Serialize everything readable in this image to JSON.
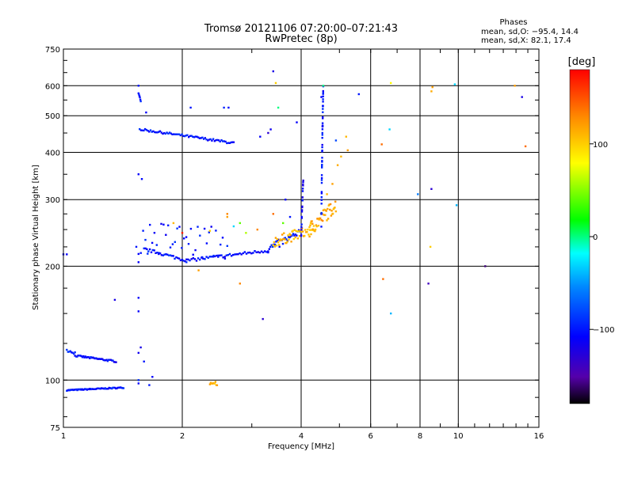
{
  "chart_data": {
    "type": "scatter",
    "title": "Tromsø 20121106 07:20:00–07:21:43",
    "subtitle": "RwPretec (8p)",
    "xlabel": "Frequency [MHz]",
    "ylabel": "Stationary phase Virtual Height [km]",
    "x_scale": "log",
    "y_scale": "log",
    "xlim": [
      1,
      16
    ],
    "ylim": [
      75,
      750
    ],
    "x_ticks": [
      1,
      2,
      4,
      6,
      8,
      10,
      16
    ],
    "y_ticks": [
      75,
      100,
      200,
      300,
      400,
      500,
      600,
      750
    ],
    "grid": true,
    "phase_box": {
      "title": "Phases",
      "line1": "mean, sd,O: −95.4, 14.4",
      "line2": "mean, sd,X:  82.1, 17.4"
    },
    "colorbar": {
      "label": "[deg]",
      "range": [
        -180,
        180
      ],
      "ticks": [
        100,
        0,
        -100
      ],
      "tick_labels": [
        "100",
        "0",
        "−100"
      ]
    },
    "segments": [
      {
        "x_from": 1.02,
        "x_to": 1.42,
        "y_from": 94,
        "y_to": 95.5,
        "n": 60,
        "phase": -100,
        "jitter": 0.3
      },
      {
        "x_from": 1.02,
        "x_to": 1.07,
        "y_from": 120,
        "y_to": 118,
        "n": 8,
        "phase": -100,
        "jitter": 1.0
      },
      {
        "x_from": 1.07,
        "x_to": 1.36,
        "y_from": 116,
        "y_to": 112,
        "n": 40,
        "phase": -105,
        "jitter": 0.6
      },
      {
        "x_from": 1.56,
        "x_to": 2.7,
        "y_from": 460,
        "y_to": 423,
        "n": 70,
        "phase": -100,
        "jitter": 3
      },
      {
        "x_from": 1.55,
        "x_to": 1.57,
        "y_from": 570,
        "y_to": 540,
        "n": 6,
        "phase": -100,
        "jitter": 8
      },
      {
        "x_from": 1.6,
        "x_to": 2.05,
        "y_from": 222,
        "y_to": 207,
        "n": 30,
        "phase": -100,
        "jitter": 2
      },
      {
        "x_from": 2.05,
        "x_to": 3.3,
        "y_from": 207,
        "y_to": 220,
        "n": 50,
        "phase": -105,
        "jitter": 2
      },
      {
        "x_from": 3.3,
        "x_to": 4.0,
        "y_from": 222,
        "y_to": 245,
        "n": 30,
        "phase": -100,
        "jitter": 6
      },
      {
        "x_from": 3.4,
        "x_to": 4.3,
        "y_from": 232,
        "y_to": 250,
        "n": 50,
        "phase": 110,
        "jitter": 8
      },
      {
        "x_from": 4.2,
        "x_to": 4.9,
        "y_from": 250,
        "y_to": 290,
        "n": 45,
        "phase": 115,
        "jitter": 12
      },
      {
        "x_from": 4.0,
        "x_to": 4.05,
        "y_from": 240,
        "y_to": 340,
        "n": 20,
        "phase": -110,
        "jitter": 5
      },
      {
        "x_from": 4.5,
        "x_to": 4.55,
        "y_from": 260,
        "y_to": 590,
        "n": 45,
        "phase": -100,
        "jitter": 8
      },
      {
        "x_from": 1.55,
        "x_to": 2.6,
        "y_from": 240,
        "y_to": 230,
        "n": 40,
        "phase": -100,
        "jitter": 25
      },
      {
        "x_from": 2.35,
        "x_to": 2.45,
        "y_from": 97,
        "y_to": 98,
        "n": 10,
        "phase": 110,
        "jitter": 1.5
      }
    ],
    "points": [
      [
        1.55,
        600,
        -100
      ],
      [
        1.62,
        510,
        -110
      ],
      [
        2.1,
        525,
        -100
      ],
      [
        2.55,
        525,
        -95
      ],
      [
        2.62,
        525,
        -105
      ],
      [
        3.4,
        655,
        -120
      ],
      [
        3.45,
        610,
        100
      ],
      [
        3.5,
        525,
        0
      ],
      [
        3.3,
        450,
        -130
      ],
      [
        3.35,
        460,
        -115
      ],
      [
        3.15,
        440,
        -110
      ],
      [
        3.9,
        480,
        -110
      ],
      [
        4.55,
        600,
        0
      ],
      [
        4.9,
        430,
        -80
      ],
      [
        5.2,
        440,
        110
      ],
      [
        5.6,
        570,
        -100
      ],
      [
        6.75,
        610,
        80
      ],
      [
        6.7,
        460,
        -30
      ],
      [
        6.4,
        420,
        140
      ],
      [
        7.9,
        310,
        -60
      ],
      [
        8.55,
        320,
        -130
      ],
      [
        8.6,
        595,
        120
      ],
      [
        8.55,
        580,
        115
      ],
      [
        9.8,
        605,
        -30
      ],
      [
        9.9,
        290,
        -40
      ],
      [
        11.7,
        200,
        -160
      ],
      [
        14.5,
        560,
        -120
      ],
      [
        14.8,
        415,
        140
      ],
      [
        13.9,
        600,
        120
      ],
      [
        8.5,
        225,
        100
      ],
      [
        8.4,
        180,
        -140
      ],
      [
        6.75,
        150,
        -40
      ],
      [
        6.45,
        185,
        140
      ],
      [
        3.2,
        145,
        -130
      ],
      [
        1.35,
        163,
        -120
      ],
      [
        2.8,
        180,
        130
      ],
      [
        2.2,
        195,
        120
      ],
      [
        1.55,
        165,
        -110
      ],
      [
        1.55,
        152,
        -110
      ],
      [
        1.57,
        122,
        -120
      ],
      [
        1.55,
        118,
        -115
      ],
      [
        1.6,
        112,
        -100
      ],
      [
        1.68,
        102,
        -110
      ],
      [
        1.55,
        100,
        -90
      ],
      [
        1.55,
        98,
        -110
      ],
      [
        1.65,
        97,
        -100
      ],
      [
        1.0,
        215,
        -110
      ],
      [
        1.02,
        215,
        -110
      ],
      [
        1.55,
        205,
        -110
      ],
      [
        1.53,
        225,
        -100
      ],
      [
        2.6,
        270,
        120
      ],
      [
        2.6,
        275,
        130
      ],
      [
        2.35,
        248,
        100
      ],
      [
        3.4,
        275,
        140
      ],
      [
        3.6,
        260,
        40
      ],
      [
        3.65,
        300,
        -110
      ],
      [
        3.75,
        270,
        -100
      ],
      [
        4.65,
        310,
        110
      ],
      [
        4.8,
        330,
        120
      ],
      [
        4.95,
        370,
        115
      ],
      [
        5.05,
        390,
        110
      ],
      [
        5.25,
        405,
        120
      ],
      [
        4.5,
        560,
        -110
      ],
      [
        1.55,
        350,
        -110
      ],
      [
        1.58,
        340,
        -105
      ],
      [
        1.9,
        260,
        110
      ],
      [
        2.0,
        245,
        170
      ],
      [
        3.1,
        250,
        130
      ],
      [
        2.9,
        245,
        60
      ],
      [
        2.8,
        260,
        40
      ],
      [
        2.7,
        255,
        -30
      ]
    ]
  }
}
